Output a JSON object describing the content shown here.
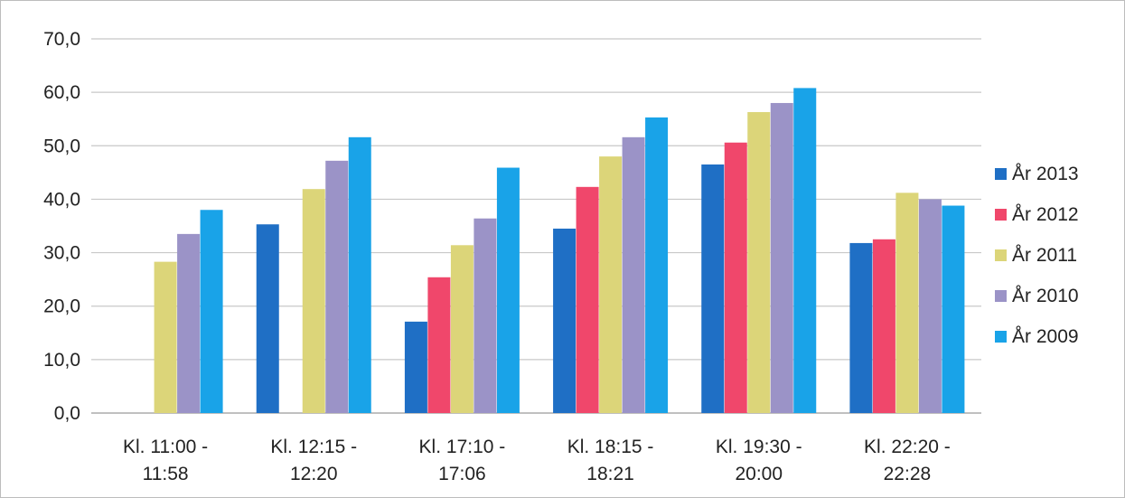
{
  "chart_data": {
    "type": "bar",
    "title": "",
    "xlabel": "",
    "ylabel": "",
    "ylim": [
      0,
      70
    ],
    "yticks": [
      "0,0",
      "10,0",
      "20,0",
      "30,0",
      "40,0",
      "50,0",
      "60,0",
      "70,0"
    ],
    "grid": true,
    "legend_position": "right",
    "categories": [
      [
        "Kl. 11:00 -",
        "11:58"
      ],
      [
        "Kl. 12:15 -",
        "12:20"
      ],
      [
        "Kl. 17:10 -",
        "17:06"
      ],
      [
        "Kl. 18:15 -",
        "18:21"
      ],
      [
        "Kl. 19:30 -",
        "20:00"
      ],
      [
        "Kl. 22:20 -",
        "22:28"
      ]
    ],
    "series": [
      {
        "name": "År 2013",
        "color": "#1f6fc5",
        "values": [
          null,
          35.3,
          17.1,
          34.5,
          46.5,
          31.8
        ]
      },
      {
        "name": "År 2012",
        "color": "#f0476b",
        "values": [
          null,
          null,
          25.4,
          42.3,
          50.6,
          32.5
        ]
      },
      {
        "name": "År 2011",
        "color": "#dcd579",
        "values": [
          28.3,
          41.9,
          31.4,
          48.0,
          56.3,
          41.2
        ]
      },
      {
        "name": "År 2010",
        "color": "#9b93c7",
        "values": [
          33.5,
          47.2,
          36.4,
          51.6,
          58.0,
          40.0
        ]
      },
      {
        "name": "År 2009",
        "color": "#19a3e8",
        "values": [
          38.0,
          51.6,
          45.9,
          55.3,
          60.8,
          38.8
        ]
      }
    ]
  }
}
